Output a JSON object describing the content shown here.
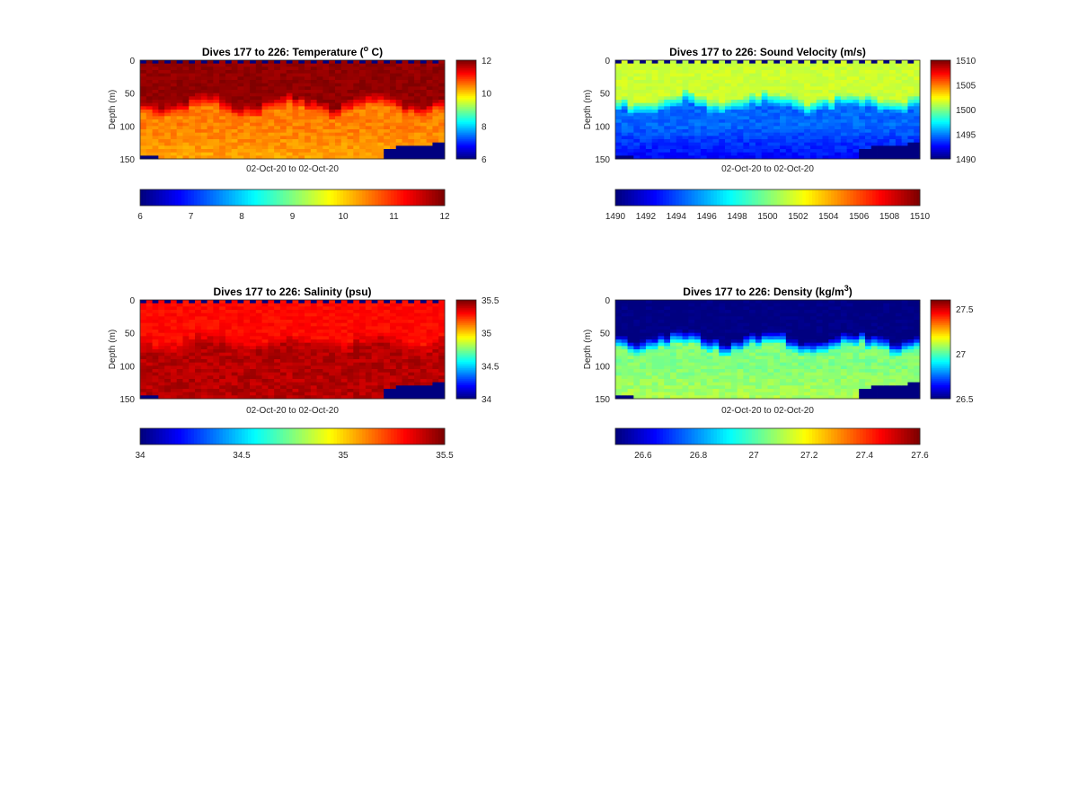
{
  "figure": {
    "background": "#ffffff",
    "colormap": "jet"
  },
  "chart_data": [
    {
      "type": "heatmap",
      "title": "Dives 177 to 226: Temperature (",
      "title_sup": "o",
      "title_end": " C)",
      "xlabel": "02-Oct-20 to 02-Oct-20",
      "ylabel": "Depth (m)",
      "ylim": [
        0,
        150
      ],
      "y_reversed": true,
      "yticks": [
        "0",
        "50",
        "100",
        "150"
      ],
      "clim": [
        6,
        12
      ],
      "colorbar_ticks": [
        "6",
        "8",
        "10",
        "12"
      ],
      "hbar_ticks": [
        "6",
        "7",
        "8",
        "9",
        "10",
        "11",
        "12"
      ],
      "dives": [
        177,
        226
      ],
      "profile": {
        "surface_value": 11.9,
        "upper_layer_value": 11.9,
        "thermocline_depth": 60,
        "deep_value": 10.5,
        "bottom_value": 10.3,
        "missing_value_depths": [
          0,
          150
        ],
        "missing_fill": "#000080"
      }
    },
    {
      "type": "heatmap",
      "title": "Dives 177 to 226: Sound Velocity (m/s)",
      "xlabel": "02-Oct-20 to 02-Oct-20",
      "ylabel": "Depth (m)",
      "ylim": [
        0,
        150
      ],
      "y_reversed": true,
      "yticks": [
        "0",
        "50",
        "100",
        "150"
      ],
      "clim": [
        1490,
        1510
      ],
      "colorbar_ticks": [
        "1490",
        "1495",
        "1500",
        "1505",
        "1510"
      ],
      "hbar_ticks": [
        "1490",
        "1492",
        "1494",
        "1496",
        "1498",
        "1500",
        "1502",
        "1504",
        "1506",
        "1508",
        "1510"
      ],
      "dives": [
        177,
        226
      ],
      "profile": {
        "surface_value": 1501.5,
        "upper_layer_value": 1501.5,
        "thermocline_depth": 55,
        "deep_value": 1494.5,
        "bottom_value": 1492.5,
        "missing_value_depths": [
          0,
          150
        ],
        "missing_fill": "#000080"
      }
    },
    {
      "type": "heatmap",
      "title": "Dives 177 to 226: Salinity (psu)",
      "xlabel": "02-Oct-20 to 02-Oct-20",
      "ylabel": "Depth (m)",
      "ylim": [
        0,
        150
      ],
      "y_reversed": true,
      "yticks": [
        "0",
        "50",
        "100",
        "150"
      ],
      "clim": [
        34,
        35.5
      ],
      "colorbar_ticks": [
        "34",
        "34.5",
        "35",
        "35.5"
      ],
      "hbar_ticks": [
        "34",
        "34.5",
        "35",
        "35.5"
      ],
      "dives": [
        177,
        226
      ],
      "profile": {
        "surface_value": 35.25,
        "upper_layer_value": 35.3,
        "thermocline_depth": 55,
        "deep_value": 35.42,
        "bottom_value": 35.42,
        "missing_value_depths": [
          0,
          150
        ],
        "missing_fill": "#000080"
      }
    },
    {
      "type": "heatmap",
      "title": "Dives 177 to 226: Density (kg/m",
      "title_sup": "3",
      "title_end": ")",
      "xlabel": "02-Oct-20 to 02-Oct-20",
      "ylabel": "Depth (m)",
      "ylim": [
        0,
        150
      ],
      "y_reversed": true,
      "yticks": [
        "0",
        "50",
        "100",
        "150"
      ],
      "clim": [
        26.5,
        27.6
      ],
      "colorbar_ticks": [
        "26.5",
        "27",
        "27.5"
      ],
      "hbar_ticks": [
        "26.6",
        "26.8",
        "27",
        "27.2",
        "27.4",
        "27.6"
      ],
      "dives": [
        177,
        226
      ],
      "profile": {
        "surface_value": 26.5,
        "upper_layer_value": 26.5,
        "thermocline_depth": 55,
        "deep_value": 27.05,
        "bottom_value": 27.1,
        "missing_value_depths": [
          0,
          150
        ],
        "missing_fill": "#000080"
      }
    }
  ]
}
